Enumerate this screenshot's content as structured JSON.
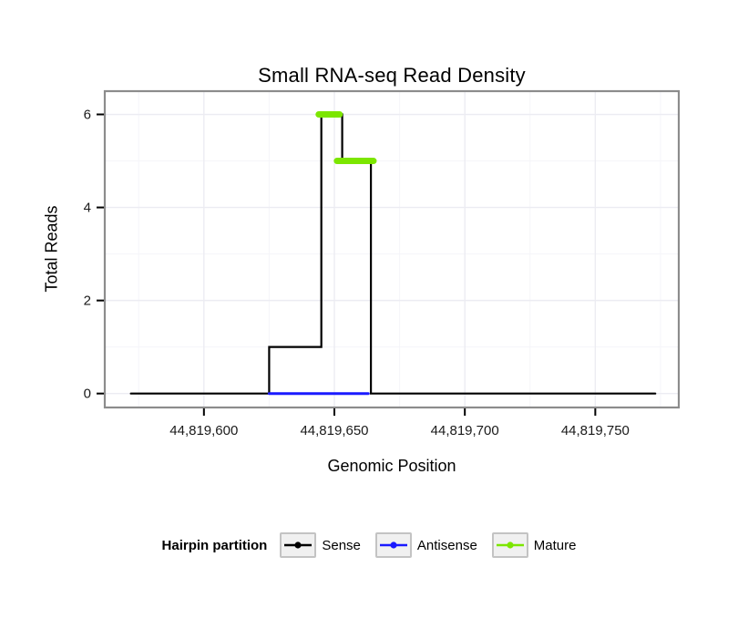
{
  "title": "Small RNA-seq Read Density",
  "xlabel": "Genomic Position",
  "ylabel": "Total Reads",
  "legend": {
    "title": "Hairpin partition",
    "items": [
      {
        "label": "Sense",
        "color": "#000000"
      },
      {
        "label": "Antisense",
        "color": "#1a1aff"
      },
      {
        "label": "Mature",
        "color": "#7ce600"
      }
    ]
  },
  "colors": {
    "panel_border": "#8c8c8c",
    "major_grid": "#ececf2",
    "minor_grid": "#f5f5f9",
    "tick": "#000000",
    "tick_label": "#1a1a1a"
  },
  "chart_data": {
    "type": "line",
    "title": "Small RNA-seq Read Density",
    "xlabel": "Genomic Position",
    "ylabel": "Total Reads",
    "xlim": [
      44819562,
      44819782
    ],
    "ylim": [
      -0.3,
      6.5
    ],
    "x_ticks": [
      {
        "value": 44819600,
        "label": "44,819,600"
      },
      {
        "value": 44819650,
        "label": "44,819,650"
      },
      {
        "value": 44819700,
        "label": "44,819,700"
      },
      {
        "value": 44819750,
        "label": "44,819,750"
      }
    ],
    "y_ticks": [
      {
        "value": 0,
        "label": "0"
      },
      {
        "value": 2,
        "label": "2"
      },
      {
        "value": 4,
        "label": "4"
      },
      {
        "value": 6,
        "label": "6"
      }
    ],
    "x_minor": [
      44819575,
      44819625,
      44819675,
      44819725,
      44819775
    ],
    "y_minor": [
      1,
      3,
      5
    ],
    "grid": true,
    "legend_position": "bottom",
    "series": [
      {
        "name": "Sense",
        "color": "#000000",
        "width": 2.2,
        "points": [
          [
            44819572,
            0
          ],
          [
            44819625,
            0
          ],
          [
            44819625,
            1
          ],
          [
            44819645,
            1
          ],
          [
            44819645,
            6
          ],
          [
            44819653,
            6
          ],
          [
            44819653,
            5
          ],
          [
            44819664,
            5
          ],
          [
            44819664,
            0
          ],
          [
            44819773,
            0
          ]
        ]
      },
      {
        "name": "Antisense",
        "color": "#1a1aff",
        "width": 3,
        "points": [
          [
            44819625,
            0
          ],
          [
            44819663,
            0
          ]
        ]
      },
      {
        "name": "Mature",
        "color": "#7ce600",
        "width": 7,
        "segments": [
          [
            [
              44819644,
              6
            ],
            [
              44819652,
              6
            ]
          ],
          [
            [
              44819651,
              5
            ],
            [
              44819665,
              5
            ]
          ]
        ]
      }
    ]
  }
}
